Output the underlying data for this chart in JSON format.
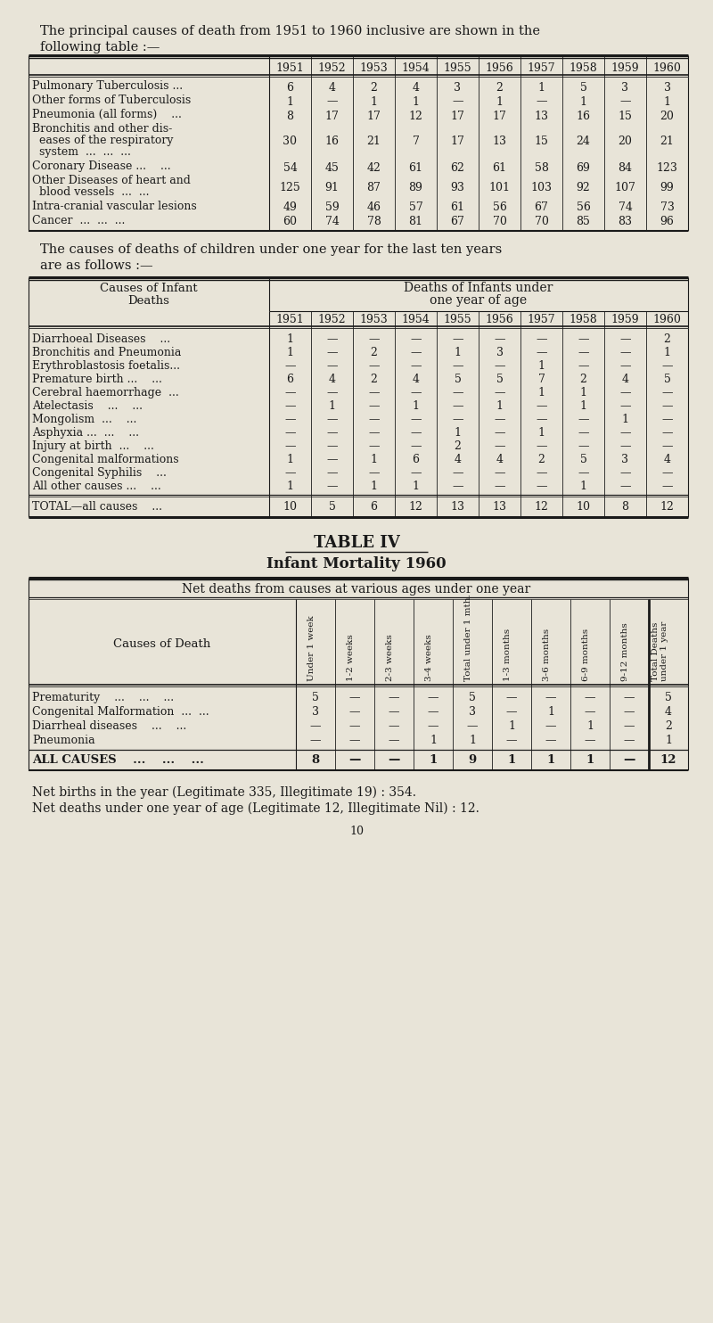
{
  "bg_color": "#e8e4d8",
  "text_color": "#1a1a1a",
  "title1_line1": "The principal causes of death from 1951 to 1960 inclusive are shown in the",
  "title1_line2": "following table :—",
  "years": [
    "1951",
    "1952",
    "1953",
    "1954",
    "1955",
    "1956",
    "1957",
    "1958",
    "1959",
    "1960"
  ],
  "table1_causes": [
    [
      "Pulmonary Tuberculosis ..."
    ],
    [
      "Other forms of Tuberculosis"
    ],
    [
      "Pneumonia (all forms)    ..."
    ],
    [
      "Bronchitis and other dis-",
      "  eases of the respiratory",
      "  system  ...  ...  ..."
    ],
    [
      "Coronary Disease ...    ..."
    ],
    [
      "Other Diseases of heart and",
      "  blood vessels  ...  ..."
    ],
    [
      "Intra-cranial vascular lesions"
    ],
    [
      "Cancer  ...  ...  ..."
    ]
  ],
  "table1_data": [
    [
      "6",
      "4",
      "2",
      "4",
      "3",
      "2",
      "1",
      "5",
      "3",
      "3"
    ],
    [
      "1",
      "—",
      "1",
      "1",
      "—",
      "1",
      "—",
      "1",
      "—",
      "1"
    ],
    [
      "8",
      "17",
      "17",
      "12",
      "17",
      "17",
      "13",
      "16",
      "15",
      "20"
    ],
    [
      "30",
      "16",
      "21",
      "7",
      "17",
      "13",
      "15",
      "24",
      "20",
      "21"
    ],
    [
      "54",
      "45",
      "42",
      "61",
      "62",
      "61",
      "58",
      "69",
      "84",
      "123"
    ],
    [
      "125",
      "91",
      "87",
      "89",
      "93",
      "101",
      "103",
      "92",
      "107",
      "99"
    ],
    [
      "49",
      "59",
      "46",
      "57",
      "61",
      "56",
      "67",
      "56",
      "74",
      "73"
    ],
    [
      "60",
      "74",
      "78",
      "81",
      "67",
      "70",
      "70",
      "85",
      "83",
      "96"
    ]
  ],
  "title2_line1": "The causes of deaths of children under one year for the last ten years",
  "title2_line2": "are as follows :—",
  "table2_causes": [
    "Diarrhoeal Diseases    ...",
    "Bronchitis and Pneumonia",
    "Erythroblastosis foetalis...",
    "Premature birth ...    ...",
    "Cerebral haemorrhage  ...",
    "Atelectasis    ...    ...",
    "Mongolism  ...    ...",
    "Asphyxia ...  ...    ...",
    "Injury at birth  ...    ...",
    "Congenital malformations",
    "Congenital Syphilis    ...",
    "All other causes ...    ..."
  ],
  "table2_data": [
    [
      "1",
      "—",
      "—",
      "—",
      "—",
      "—",
      "—",
      "—",
      "—",
      "2"
    ],
    [
      "1",
      "—",
      "2",
      "—",
      "1",
      "3",
      "—",
      "—",
      "—",
      "1"
    ],
    [
      "—",
      "—",
      "—",
      "—",
      "—",
      "—",
      "1",
      "—",
      "—",
      "—"
    ],
    [
      "6",
      "4",
      "2",
      "4",
      "5",
      "5",
      "7",
      "2",
      "4",
      "5"
    ],
    [
      "—",
      "—",
      "—",
      "—",
      "—",
      "—",
      "1",
      "1",
      "—",
      "—"
    ],
    [
      "—",
      "1",
      "—",
      "1",
      "—",
      "1",
      "—",
      "1",
      "—",
      "—"
    ],
    [
      "—",
      "—",
      "—",
      "—",
      "—",
      "—",
      "—",
      "—",
      "1",
      "—"
    ],
    [
      "—",
      "—",
      "—",
      "—",
      "1",
      "—",
      "1",
      "—",
      "—",
      "—"
    ],
    [
      "—",
      "—",
      "—",
      "—",
      "2",
      "—",
      "—",
      "—",
      "—",
      "—"
    ],
    [
      "1",
      "—",
      "1",
      "6",
      "4",
      "4",
      "2",
      "5",
      "3",
      "4"
    ],
    [
      "—",
      "—",
      "—",
      "—",
      "—",
      "—",
      "—",
      "—",
      "—",
      "—"
    ],
    [
      "1",
      "—",
      "1",
      "1",
      "—",
      "—",
      "—",
      "1",
      "—",
      "—"
    ]
  ],
  "table2_total": [
    "10",
    "5",
    "6",
    "12",
    "13",
    "13",
    "12",
    "10",
    "8",
    "12"
  ],
  "title3a": "TABLE IV",
  "title3b": "Infant Mortality 1960",
  "title3c": "Net deaths from causes at various ages under one year",
  "table3_col_headers": [
    "Under 1 week",
    "1-2 weeks",
    "2-3 weeks",
    "3-4 weeks",
    "Total under 1 mth.",
    "1-3 months",
    "3-6 months",
    "6-9 months",
    "9-12 months",
    "Total Deaths\nunder 1 year"
  ],
  "table3_causes": [
    "Prematurity    ...    ...    ...",
    "Congenital Malformation  ...  ...",
    "Diarrheal diseases    ...    ...",
    "Pneumonia"
  ],
  "table3_data": [
    [
      "5",
      "—",
      "—",
      "—",
      "5",
      "—",
      "—",
      "—",
      "—",
      "5"
    ],
    [
      "3",
      "—",
      "—",
      "—",
      "3",
      "—",
      "1",
      "—",
      "—",
      "4"
    ],
    [
      "—",
      "—",
      "—",
      "—",
      "—",
      "1",
      "—",
      "1",
      "—",
      "2"
    ],
    [
      "—",
      "—",
      "—",
      "1",
      "1",
      "—",
      "—",
      "—",
      "—",
      "1"
    ]
  ],
  "table3_total": [
    "8",
    "—",
    "—",
    "1",
    "9",
    "1",
    "1",
    "1",
    "—",
    "12"
  ],
  "footer1": "Net births in the year (Legitimate 335, Illegitimate 19) : 354.",
  "footer2": "Net deaths under one year of age (Legitimate 12, Illegitimate Nil) : 12.",
  "page_number": "10"
}
